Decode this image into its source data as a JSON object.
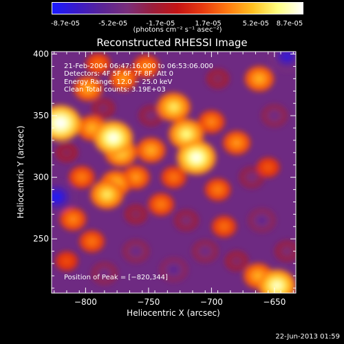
{
  "colorbar": {
    "ticks": [
      "-8.7e-05",
      "-5.2e-05",
      "-1.7e-05",
      "1.7e-05",
      "5.2e-05",
      "8.7e-05"
    ],
    "units_label": "(photons cm⁻² s⁻¹ asec⁻²)",
    "colors": [
      "#1a1aff",
      "#3a1ac8",
      "#5a2496",
      "#7a2e7a",
      "#9a1e3c",
      "#c41414",
      "#e83a10",
      "#ff7a10",
      "#ffc020",
      "#ffff80",
      "#ffffff"
    ]
  },
  "chart_data": {
    "type": "heatmap",
    "title": "Reconstructed RHESSI Image",
    "xlabel": "Heliocentric X (arcsec)",
    "ylabel": "Heliocentric Y (arcsec)",
    "xlim": [
      -827,
      -633
    ],
    "ylim": [
      206,
      402
    ],
    "x_ticks": [
      -800,
      -750,
      -700,
      -650
    ],
    "y_ticks": [
      250,
      300,
      350,
      400
    ],
    "x_tick_labels": [
      "−800",
      "−750",
      "−700",
      "−650"
    ],
    "y_tick_labels": [
      "250",
      "300",
      "350",
      "400"
    ],
    "colorbar_range": [
      -8.7e-05,
      8.7e-05
    ],
    "info": [
      "21-Feb-2004 06:47:16.000 to 06:53:06.000",
      "Detectors: 4F 5F 6F 7F 8F, Att 0",
      "Energy Range: 12.0 − 25.0 keV",
      "Clean     Total counts: 3.19E+03"
    ],
    "peak_label": "Position of Peak = [−820,344]",
    "sources": [
      {
        "x": -820,
        "y": 344,
        "value": 8.7e-05
      },
      {
        "x": -778,
        "y": 332,
        "value": 8e-05
      },
      {
        "x": -772,
        "y": 320,
        "value": 5.6e-05
      },
      {
        "x": -795,
        "y": 340,
        "value": 4.6e-05
      },
      {
        "x": -720,
        "y": 335,
        "value": 6.6e-05
      },
      {
        "x": -712,
        "y": 316,
        "value": 8e-05
      },
      {
        "x": -730,
        "y": 357,
        "value": 6e-05
      },
      {
        "x": -748,
        "y": 322,
        "value": 4.5e-05
      },
      {
        "x": -700,
        "y": 345,
        "value": 3.6e-05
      },
      {
        "x": -662,
        "y": 380,
        "value": 4.6e-05
      },
      {
        "x": -680,
        "y": 328,
        "value": 4e-05
      },
      {
        "x": -798,
        "y": 372,
        "value": 4.4e-05
      },
      {
        "x": -770,
        "y": 380,
        "value": 4e-05
      },
      {
        "x": -752,
        "y": 390,
        "value": 3.6e-05
      },
      {
        "x": -790,
        "y": 392,
        "value": 3e-05
      },
      {
        "x": -783,
        "y": 286,
        "value": 6e-05
      },
      {
        "x": -776,
        "y": 295,
        "value": 5e-05
      },
      {
        "x": -760,
        "y": 300,
        "value": 4e-05
      },
      {
        "x": -803,
        "y": 300,
        "value": 3.4e-05
      },
      {
        "x": -810,
        "y": 266,
        "value": 3.6e-05
      },
      {
        "x": -795,
        "y": 248,
        "value": 3.2e-05
      },
      {
        "x": -740,
        "y": 278,
        "value": 3.4e-05
      },
      {
        "x": -730,
        "y": 300,
        "value": 3.2e-05
      },
      {
        "x": -695,
        "y": 290,
        "value": 3.4e-05
      },
      {
        "x": -690,
        "y": 260,
        "value": 3e-05
      },
      {
        "x": -655,
        "y": 308,
        "value": 2.4e-05
      },
      {
        "x": -648,
        "y": 212,
        "value": 7.4e-05
      },
      {
        "x": -663,
        "y": 220,
        "value": 4.6e-05
      },
      {
        "x": -815,
        "y": 232,
        "value": 2.2e-05
      },
      {
        "x": -748,
        "y": 350,
        "value": -3.4e-05
      },
      {
        "x": -786,
        "y": 356,
        "value": -3e-05
      },
      {
        "x": -695,
        "y": 380,
        "value": -2.8e-05
      },
      {
        "x": -640,
        "y": 398,
        "value": -7e-05
      },
      {
        "x": -823,
        "y": 284,
        "value": -8e-05
      },
      {
        "x": -760,
        "y": 240,
        "value": -4.2e-05
      },
      {
        "x": -730,
        "y": 225,
        "value": -4.8e-05
      },
      {
        "x": -705,
        "y": 240,
        "value": -4e-05
      },
      {
        "x": -660,
        "y": 265,
        "value": -4.6e-05
      },
      {
        "x": -650,
        "y": 350,
        "value": -4e-05
      },
      {
        "x": -668,
        "y": 300,
        "value": -3.6e-05
      },
      {
        "x": -785,
        "y": 222,
        "value": -4e-05
      },
      {
        "x": -720,
        "y": 265,
        "value": -3.4e-05
      },
      {
        "x": -640,
        "y": 240,
        "value": -3.4e-05
      },
      {
        "x": -815,
        "y": 320,
        "value": -2.6e-05
      },
      {
        "x": -760,
        "y": 270,
        "value": -2.8e-05
      },
      {
        "x": -680,
        "y": 232,
        "value": -3e-05
      }
    ]
  },
  "timestamp": "22-Jun-2013 01:59"
}
